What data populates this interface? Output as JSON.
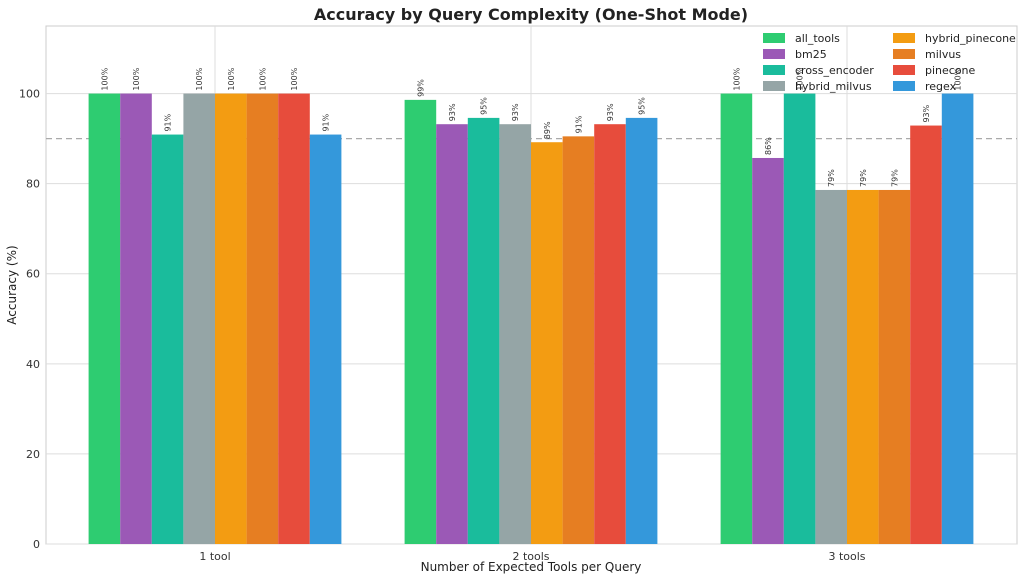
{
  "chart_data": {
    "type": "bar",
    "title": "Accuracy by Query Complexity (One-Shot Mode)",
    "xlabel": "Number of Expected Tools per Query",
    "ylabel": "Accuracy (%)",
    "ylim": [
      0,
      115
    ],
    "yticks": [
      0,
      20,
      40,
      60,
      80,
      100
    ],
    "yticklabels": [
      "0",
      "20",
      "40",
      "60",
      "80",
      "100"
    ],
    "reference_line": 90,
    "grid": true,
    "legend_position": "top-right",
    "categories": [
      "1 tool",
      "2 tools",
      "3 tools"
    ],
    "series": [
      {
        "name": "all_tools",
        "color": "#2ecc71",
        "values": [
          100,
          98.6,
          100
        ],
        "labels": [
          "100%",
          "99%",
          "100%"
        ]
      },
      {
        "name": "bm25",
        "color": "#9b59b6",
        "values": [
          100,
          93.2,
          85.7
        ],
        "labels": [
          "100%",
          "93%",
          "86%"
        ]
      },
      {
        "name": "cross_encoder",
        "color": "#1abc9c",
        "values": [
          90.9,
          94.6,
          100
        ],
        "labels": [
          "91%",
          "95%",
          "100%"
        ]
      },
      {
        "name": "hybrid_milvus",
        "color": "#95a5a6",
        "values": [
          100,
          93.2,
          78.6
        ],
        "labels": [
          "100%",
          "93%",
          "79%"
        ]
      },
      {
        "name": "hybrid_pinecone",
        "color": "#f39c12",
        "values": [
          100,
          89.2,
          78.6
        ],
        "labels": [
          "100%",
          "89%",
          "79%"
        ]
      },
      {
        "name": "milvus",
        "color": "#e67e22",
        "values": [
          100,
          90.5,
          78.6
        ],
        "labels": [
          "100%",
          "91%",
          "79%"
        ]
      },
      {
        "name": "pinecone",
        "color": "#e74c3c",
        "values": [
          100,
          93.2,
          92.9
        ],
        "labels": [
          "100%",
          "93%",
          "93%"
        ]
      },
      {
        "name": "regex",
        "color": "#3498db",
        "values": [
          90.9,
          94.6,
          100
        ],
        "labels": [
          "91%",
          "95%",
          "100%"
        ]
      }
    ]
  }
}
